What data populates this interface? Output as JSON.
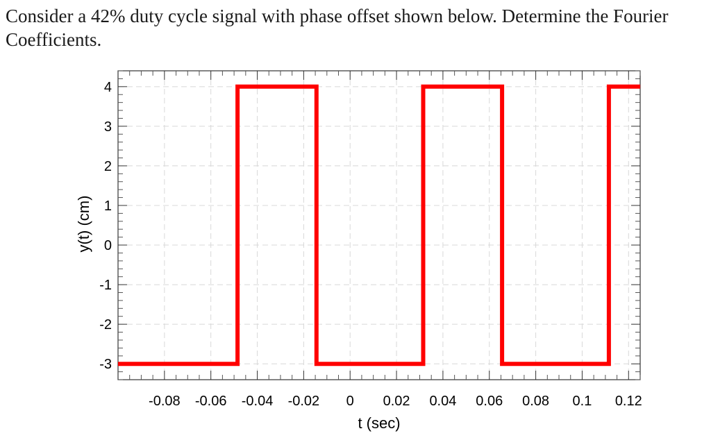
{
  "question": {
    "text": "Consider a 42% duty cycle signal with phase offset shown below. Determine the Fourier Coefficients."
  },
  "chart_data": {
    "type": "line",
    "title": "",
    "xlabel": "t (sec)",
    "ylabel": "y(t) (cm)",
    "xlim": [
      -0.1,
      0.125
    ],
    "ylim": [
      -3.4,
      4.4
    ],
    "x_ticks": [
      -0.08,
      -0.06,
      -0.04,
      -0.02,
      0,
      0.02,
      0.04,
      0.06,
      0.08,
      0.1,
      0.12
    ],
    "x_tick_labels": [
      "-0.08",
      "-0.06",
      "-0.04",
      "-0.02",
      "0",
      "0.02",
      "0.04",
      "0.06",
      "0.08",
      "0.1",
      "0.12"
    ],
    "y_ticks": [
      -3,
      -2,
      -1,
      0,
      1,
      2,
      3,
      4
    ],
    "y_tick_labels": [
      "-3",
      "-2",
      "-1",
      "0",
      "1",
      "2",
      "3",
      "4"
    ],
    "grid": true,
    "series": [
      {
        "color": "#ff0000",
        "x": [
          -0.1,
          -0.0485,
          -0.0485,
          -0.0145,
          -0.0145,
          0.0315,
          0.0315,
          0.0655,
          0.0655,
          0.1115,
          0.1115,
          0.125
        ],
        "y": [
          -3,
          -3,
          4,
          4,
          -3,
          -3,
          4,
          4,
          -3,
          -3,
          4,
          4
        ]
      }
    ]
  }
}
